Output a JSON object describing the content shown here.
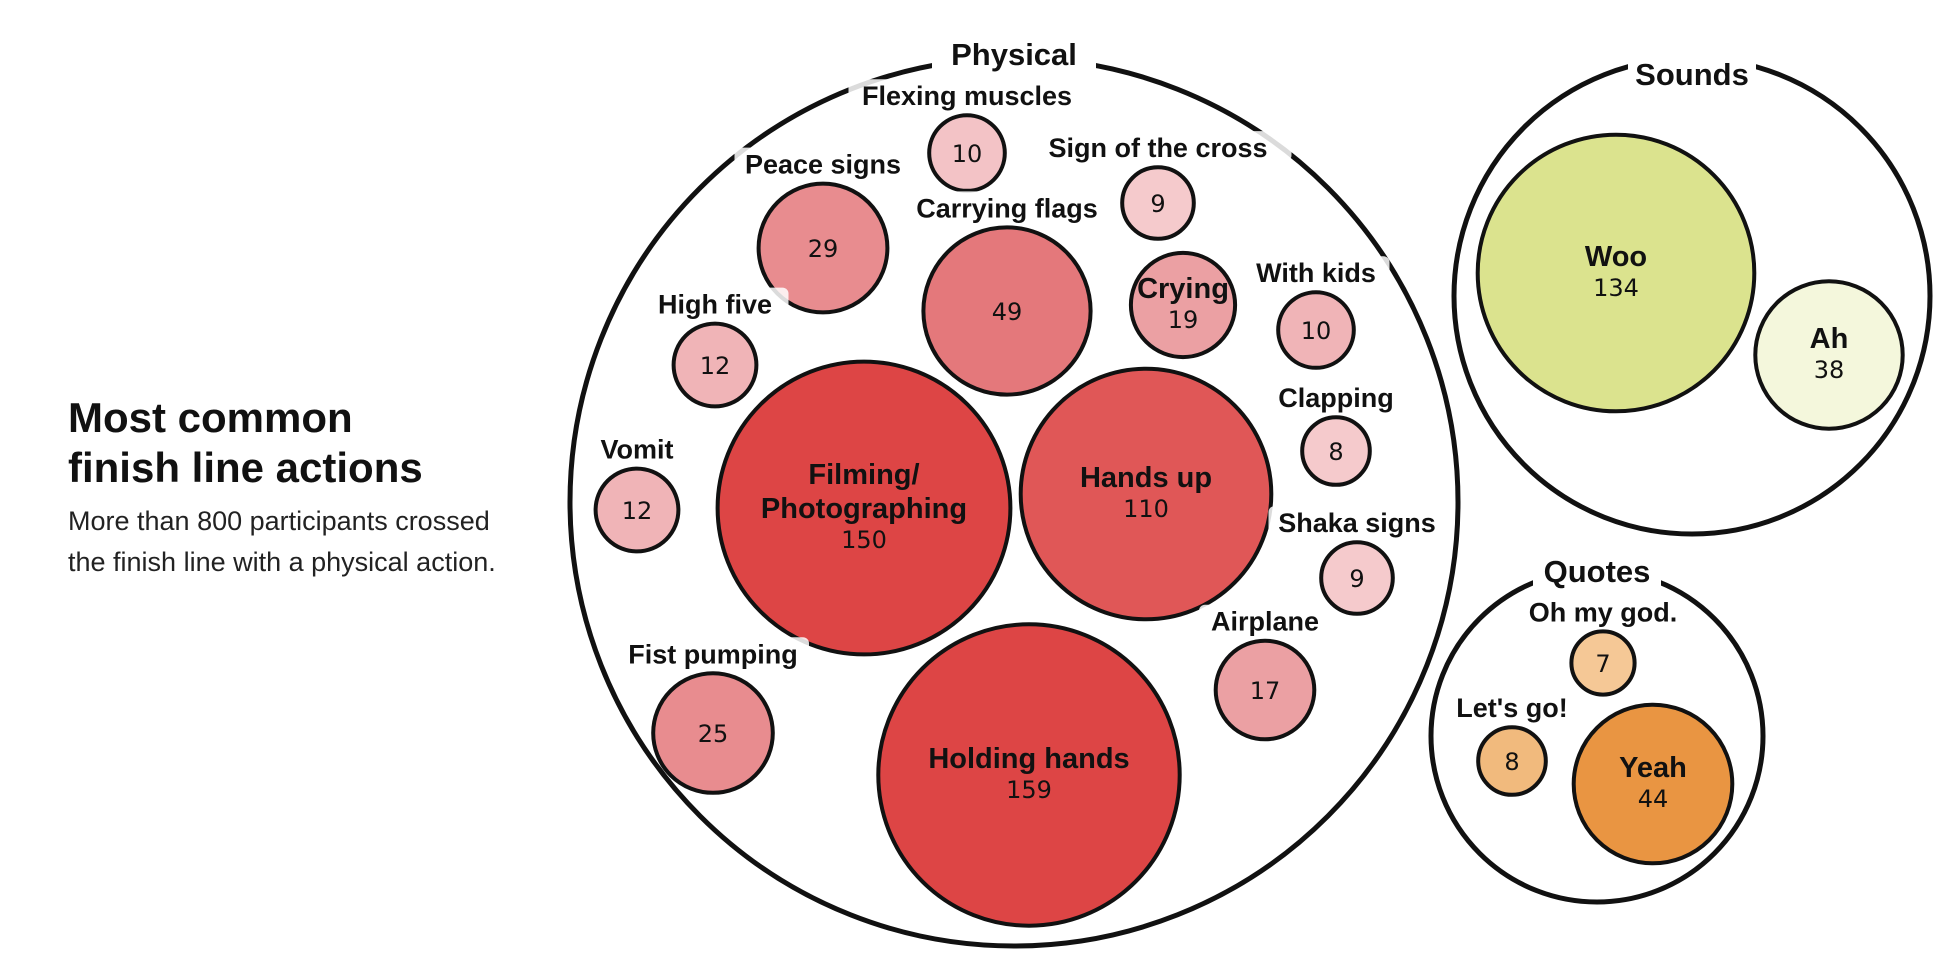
{
  "header": {
    "title_line1": "Most common",
    "title_line2": "finish line actions",
    "subtitle_line1": "More than 800 participants crossed",
    "subtitle_line2": "the finish line with a physical action."
  },
  "chart_data": {
    "type": "bubble",
    "groups": [
      {
        "name": "Physical",
        "items": [
          {
            "label": "Holding hands",
            "value": 159,
            "color": "#dd4545"
          },
          {
            "label": "Filming/ Photographing",
            "value": 150,
            "color": "#dd4545"
          },
          {
            "label": "Hands up",
            "value": 110,
            "color": "#e05757"
          },
          {
            "label": "Carrying flags",
            "value": 49,
            "color": "#e4787b"
          },
          {
            "label": "Peace signs",
            "value": 29,
            "color": "#e88c8f"
          },
          {
            "label": "Fist pumping",
            "value": 25,
            "color": "#e88c8f"
          },
          {
            "label": "Crying",
            "value": 19,
            "color": "#eba0a3"
          },
          {
            "label": "Airplane",
            "value": 17,
            "color": "#eba0a3"
          },
          {
            "label": "High five",
            "value": 12,
            "color": "#f0b4b7"
          },
          {
            "label": "Vomit",
            "value": 12,
            "color": "#f0b4b7"
          },
          {
            "label": "Flexing muscles",
            "value": 10,
            "color": "#f3c3c6"
          },
          {
            "label": "With kids",
            "value": 10,
            "color": "#f0b4b7"
          },
          {
            "label": "Sign of the cross",
            "value": 9,
            "color": "#f5cacc"
          },
          {
            "label": "Shaka signs",
            "value": 9,
            "color": "#f5cacc"
          },
          {
            "label": "Clapping",
            "value": 8,
            "color": "#f5cacc"
          }
        ]
      },
      {
        "name": "Sounds",
        "items": [
          {
            "label": "Woo",
            "value": 134,
            "color": "#dbe38e"
          },
          {
            "label": "Ah",
            "value": 38,
            "color": "#f4f7dc"
          }
        ]
      },
      {
        "name": "Quotes",
        "items": [
          {
            "label": "Yeah",
            "value": 44,
            "color": "#e99542"
          },
          {
            "label": "Let's go!",
            "value": 8,
            "color": "#f1ba7d"
          },
          {
            "label": "Oh my god.",
            "value": 7,
            "color": "#f5c896"
          }
        ]
      }
    ]
  }
}
